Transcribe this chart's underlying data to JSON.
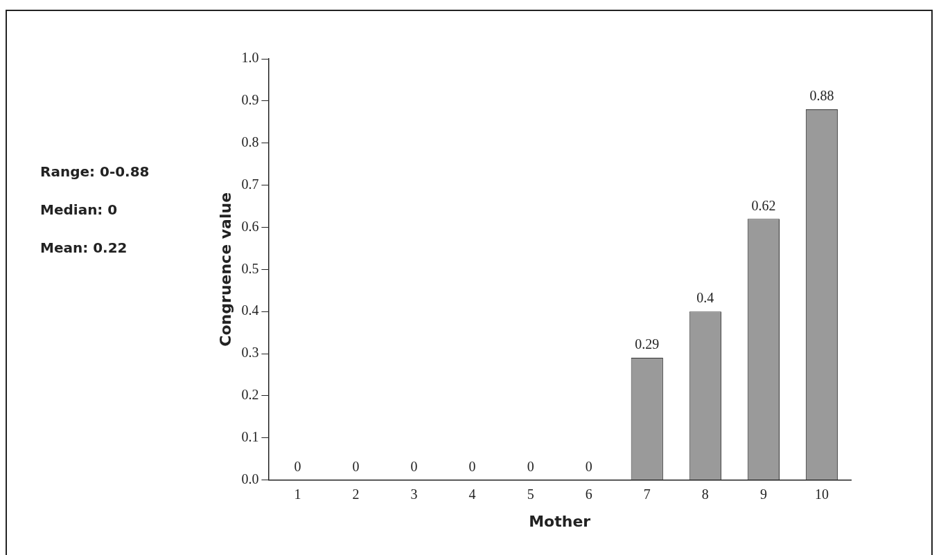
{
  "chart_data": {
    "type": "bar",
    "xlabel": "Mother",
    "ylabel": "Congruence value",
    "categories": [
      "1",
      "2",
      "3",
      "4",
      "5",
      "6",
      "7",
      "8",
      "9",
      "10"
    ],
    "values": [
      0,
      0,
      0,
      0,
      0,
      0,
      0.29,
      0.4,
      0.62,
      0.88
    ],
    "color": "#9a9a9a",
    "ylim": [
      0,
      1
    ],
    "yticks": [
      {
        "value": 0,
        "label": "0.0"
      },
      {
        "value": 0.1,
        "label": "0.1"
      },
      {
        "value": 0.2,
        "label": "0.2"
      },
      {
        "value": 0.3,
        "label": "0.3"
      },
      {
        "value": 0.4,
        "label": "0.4"
      },
      {
        "value": 0.5,
        "label": "0.5"
      },
      {
        "value": 0.6,
        "label": "0.6"
      },
      {
        "value": 0.7,
        "label": "0.7"
      },
      {
        "value": 0.8,
        "label": "0.8"
      },
      {
        "value": 0.9,
        "label": "0.9"
      },
      {
        "value": 1,
        "label": "1.0"
      }
    ],
    "grid": false,
    "legend": false,
    "data_labels": true,
    "annotations": [
      "Range: 0-0.88",
      "Median: 0",
      "Mean: 0.22"
    ]
  }
}
